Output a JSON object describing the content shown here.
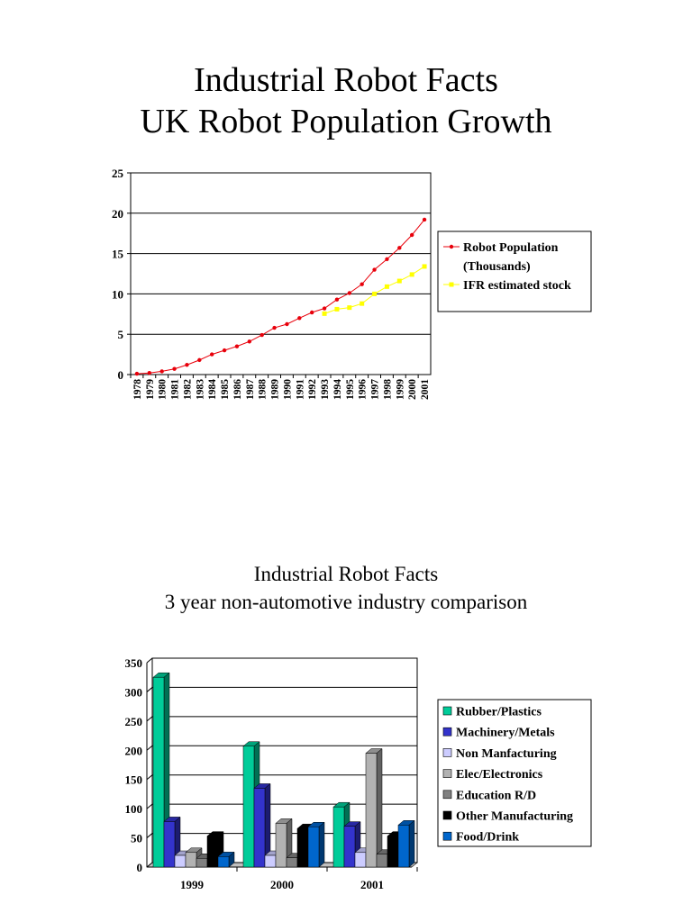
{
  "chart_data": [
    {
      "type": "line",
      "title": "Industrial Robot Facts",
      "subtitle": "UK Robot Population Growth",
      "xlabel": "",
      "ylabel": "",
      "ylim": [
        0,
        25
      ],
      "yticks": [
        0,
        5,
        10,
        15,
        20,
        25
      ],
      "grid": true,
      "legend_placement": "right",
      "x": [
        "1978",
        "1979",
        "1980",
        "1981",
        "1982",
        "1983",
        "1984",
        "1985",
        "1986",
        "1987",
        "1988",
        "1989",
        "1990",
        "1991",
        "1992",
        "1993",
        "1994",
        "1995",
        "1996",
        "1997",
        "1998",
        "1999",
        "2000",
        "2001"
      ],
      "series": [
        {
          "name": "Robot Population (Thousands)",
          "legend_lines": [
            "Robot Population",
            "(Thousands)"
          ],
          "color": "#e8000b",
          "values": [
            0.1,
            0.2,
            0.4,
            0.7,
            1.2,
            1.8,
            2.5,
            3.0,
            3.5,
            4.1,
            4.9,
            5.8,
            6.25,
            7.0,
            7.7,
            8.2,
            9.3,
            10.1,
            11.2,
            13.0,
            14.3,
            15.7,
            17.3,
            19.2
          ]
        },
        {
          "name": "IFR estimated stock",
          "legend_lines": [
            "IFR estimated stock"
          ],
          "color": "#ffff00",
          "values": [
            null,
            null,
            null,
            null,
            null,
            null,
            null,
            null,
            null,
            null,
            null,
            null,
            null,
            null,
            null,
            7.55,
            8.1,
            8.3,
            8.8,
            10.0,
            10.9,
            11.6,
            12.4,
            13.4
          ]
        }
      ]
    },
    {
      "type": "bar",
      "title": "Industrial Robot Facts",
      "subtitle": "3 year non-automotive industry comparison",
      "xlabel": "",
      "ylabel": "",
      "ylim": [
        0,
        350
      ],
      "yticks": [
        0,
        50,
        100,
        150,
        200,
        250,
        300,
        350
      ],
      "grid": true,
      "legend_placement": "right",
      "categories": [
        "1999",
        "2000",
        "2001"
      ],
      "series": [
        {
          "name": "Rubber/Plastics",
          "color": "#00cc99",
          "values": [
            325,
            207,
            103
          ]
        },
        {
          "name": "Machinery/Metals",
          "color": "#3333cc",
          "values": [
            78,
            135,
            70
          ]
        },
        {
          "name": "Non Manfacturing",
          "color": "#ccccff",
          "values": [
            20,
            20,
            25
          ]
        },
        {
          "name": "Elec/Electronics",
          "color": "#b2b2b2",
          "values": [
            25,
            75,
            195
          ]
        },
        {
          "name": "Education R/D",
          "color": "#808080",
          "values": [
            15,
            16,
            22
          ]
        },
        {
          "name": "Other Manufacturing",
          "color": "#000000",
          "values": [
            53,
            66,
            53
          ]
        },
        {
          "name": "Food/Drink",
          "color": "#0066cc",
          "values": [
            18,
            69,
            72
          ]
        }
      ]
    }
  ]
}
